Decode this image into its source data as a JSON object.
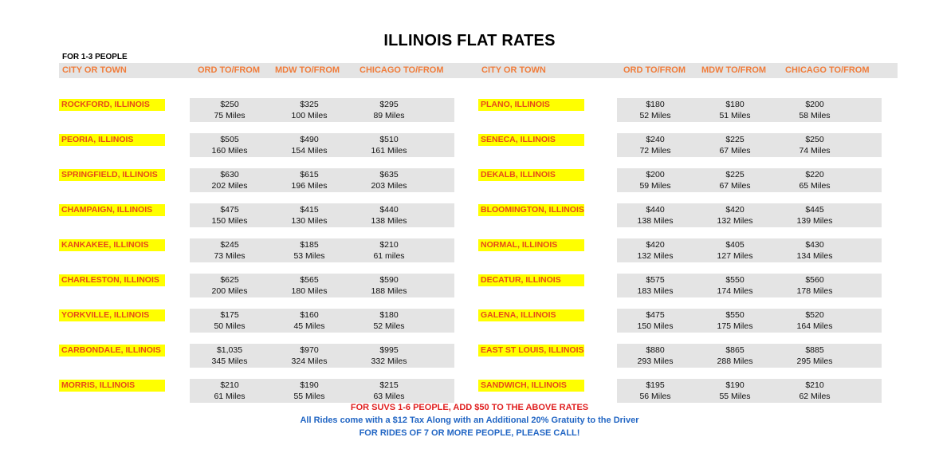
{
  "title": "ILLINOIS FLAT RATES",
  "subtitle": "FOR 1-3 PEOPLE",
  "headers": {
    "city": "CITY OR TOWN",
    "ord": "ORD TO/FROM",
    "mdw": "MDW TO/FROM",
    "chicago": "CHICAGO TO/FROM"
  },
  "left": [
    {
      "city": "ROCKFORD, ILLINOIS",
      "ord": {
        "price": "$250",
        "miles": "75 Miles"
      },
      "mdw": {
        "price": "$325",
        "miles": "100 Miles"
      },
      "chicago": {
        "price": "$295",
        "miles": "89 Miles"
      }
    },
    {
      "city": "PEORIA, ILLINOIS",
      "ord": {
        "price": "$505",
        "miles": "160 Miles"
      },
      "mdw": {
        "price": "$490",
        "miles": "154 Miles"
      },
      "chicago": {
        "price": "$510",
        "miles": "161 Miles"
      }
    },
    {
      "city": "SPRINGFIELD, ILLINOIS",
      "ord": {
        "price": "$630",
        "miles": "202 Miles"
      },
      "mdw": {
        "price": "$615",
        "miles": "196 Miles"
      },
      "chicago": {
        "price": "$635",
        "miles": "203 Miles"
      }
    },
    {
      "city": "CHAMPAIGN, ILLINOIS",
      "ord": {
        "price": "$475",
        "miles": "150 Miles"
      },
      "mdw": {
        "price": "$415",
        "miles": "130 Miles"
      },
      "chicago": {
        "price": "$440",
        "miles": "138 Miles"
      }
    },
    {
      "city": "KANKAKEE, ILLINOIS",
      "ord": {
        "price": "$245",
        "miles": "73 Miles"
      },
      "mdw": {
        "price": "$185",
        "miles": "53 Miles"
      },
      "chicago": {
        "price": "$210",
        "miles": "61 miles"
      }
    },
    {
      "city": "CHARLESTON, ILLINOIS",
      "ord": {
        "price": "$625",
        "miles": "200 Miles"
      },
      "mdw": {
        "price": "$565",
        "miles": "180 Miles"
      },
      "chicago": {
        "price": "$590",
        "miles": "188 Miles"
      }
    },
    {
      "city": "YORKVILLE, ILLINOIS",
      "ord": {
        "price": "$175",
        "miles": "50 Miles"
      },
      "mdw": {
        "price": "$160",
        "miles": "45 Miles"
      },
      "chicago": {
        "price": "$180",
        "miles": "52 Miles"
      }
    },
    {
      "city": "CARBONDALE, ILLINOIS",
      "ord": {
        "price": "$1,035",
        "miles": "345 Miles"
      },
      "mdw": {
        "price": "$970",
        "miles": "324 Miles"
      },
      "chicago": {
        "price": "$995",
        "miles": "332 Miles"
      }
    },
    {
      "city": "MORRIS, ILLINOIS",
      "ord": {
        "price": "$210",
        "miles": "61 Miles"
      },
      "mdw": {
        "price": "$190",
        "miles": "55 Miles"
      },
      "chicago": {
        "price": "$215",
        "miles": "63 Miles"
      }
    }
  ],
  "right": [
    {
      "city": "PLANO, ILLINOIS",
      "ord": {
        "price": "$180",
        "miles": "52 Miles"
      },
      "mdw": {
        "price": "$180",
        "miles": "51 Miles"
      },
      "chicago": {
        "price": "$200",
        "miles": "58 Miles"
      }
    },
    {
      "city": "SENECA, ILLINOIS",
      "ord": {
        "price": "$240",
        "miles": "72 Miles"
      },
      "mdw": {
        "price": "$225",
        "miles": "67 Miles"
      },
      "chicago": {
        "price": "$250",
        "miles": "74 Miles"
      }
    },
    {
      "city": "DEKALB, ILLINOIS",
      "ord": {
        "price": "$200",
        "miles": "59 Miles"
      },
      "mdw": {
        "price": "$225",
        "miles": "67 Miles"
      },
      "chicago": {
        "price": "$220",
        "miles": "65 Miles"
      }
    },
    {
      "city": "BLOOMINGTON, ILLINOIS",
      "ord": {
        "price": "$440",
        "miles": "138 Miles"
      },
      "mdw": {
        "price": "$420",
        "miles": "132 Miles"
      },
      "chicago": {
        "price": "$445",
        "miles": "139 Miles"
      }
    },
    {
      "city": "NORMAL, ILLINOIS",
      "ord": {
        "price": "$420",
        "miles": "132 Miles"
      },
      "mdw": {
        "price": "$405",
        "miles": "127 Miles"
      },
      "chicago": {
        "price": "$430",
        "miles": "134 Miles"
      }
    },
    {
      "city": "DECATUR, ILLINOIS",
      "ord": {
        "price": "$575",
        "miles": "183 Miles"
      },
      "mdw": {
        "price": "$550",
        "miles": "174 Miles"
      },
      "chicago": {
        "price": "$560",
        "miles": "178 Miles"
      }
    },
    {
      "city": "GALENA, ILLINOIS",
      "ord": {
        "price": "$475",
        "miles": "150 Miles"
      },
      "mdw": {
        "price": "$550",
        "miles": "175 Miles"
      },
      "chicago": {
        "price": "$520",
        "miles": "164 Miles"
      }
    },
    {
      "city": "EAST ST LOUIS, ILLINOIS",
      "ord": {
        "price": "$880",
        "miles": "293 Miles"
      },
      "mdw": {
        "price": "$865",
        "miles": "288 Miles"
      },
      "chicago": {
        "price": "$885",
        "miles": "295 Miles"
      }
    },
    {
      "city": "SANDWICH, ILLINOIS",
      "ord": {
        "price": "$195",
        "miles": "56 Miles"
      },
      "mdw": {
        "price": "$190",
        "miles": "55 Miles"
      },
      "chicago": {
        "price": "$210",
        "miles": "62 Miles"
      }
    }
  ],
  "footer": {
    "suv_note": "FOR SUVS 1-6 PEOPLE, ADD $50 TO THE ABOVE RATES",
    "tax_note": "All Rides come with a $12 Tax Along with an Additional 20% Gratuity to the Driver",
    "large_group_note": "FOR RIDES OF 7 OR MORE PEOPLE, PLEASE CALL!"
  },
  "colors": {
    "header_text": "#f07c3a",
    "city_highlight": "#ffff00",
    "city_text": "#e64a19",
    "cell_background": "#e4e4e4",
    "footer_red": "#e02020",
    "footer_blue": "#2266c4"
  }
}
